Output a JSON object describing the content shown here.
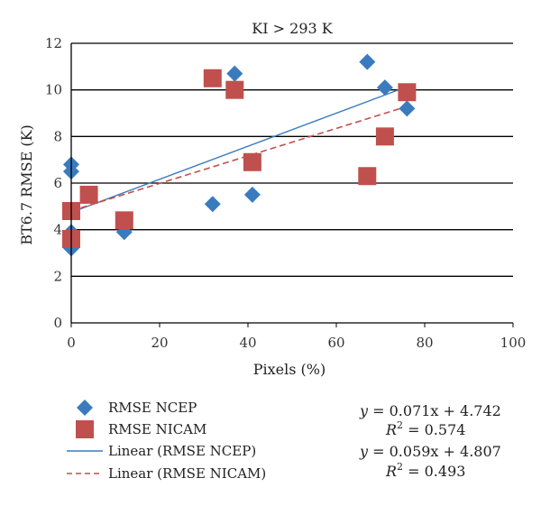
{
  "chart_data": {
    "type": "scatter",
    "title": "KI > 293 K",
    "xlabel": "Pixels (%)",
    "ylabel": "BT6.7  RMSE (K)",
    "xlim": [
      0,
      100
    ],
    "ylim": [
      0,
      12
    ],
    "x_ticks": [
      0,
      20,
      40,
      60,
      80,
      100
    ],
    "y_ticks": [
      0,
      2,
      4,
      6,
      8,
      10,
      12
    ],
    "grid": "horizontal",
    "legend_position": "bottom",
    "series": [
      {
        "name": "RMSE NCEP",
        "marker": "diamond",
        "color": "#3a7bbf",
        "points": [
          {
            "x": 0,
            "y": 6.8
          },
          {
            "x": 0,
            "y": 6.5
          },
          {
            "x": 0,
            "y": 3.9
          },
          {
            "x": 0,
            "y": 3.2
          },
          {
            "x": 12,
            "y": 3.9
          },
          {
            "x": 32,
            "y": 5.1
          },
          {
            "x": 37,
            "y": 10.7
          },
          {
            "x": 41,
            "y": 5.5
          },
          {
            "x": 67,
            "y": 11.2
          },
          {
            "x": 71,
            "y": 10.1
          },
          {
            "x": 76,
            "y": 9.2
          }
        ]
      },
      {
        "name": "RMSE NICAM",
        "marker": "square",
        "color": "#c0504d",
        "points": [
          {
            "x": 0,
            "y": 4.8
          },
          {
            "x": 0,
            "y": 3.6
          },
          {
            "x": 4,
            "y": 5.5
          },
          {
            "x": 12,
            "y": 4.4
          },
          {
            "x": 32,
            "y": 10.5
          },
          {
            "x": 37,
            "y": 10.0
          },
          {
            "x": 41,
            "y": 6.9
          },
          {
            "x": 67,
            "y": 6.3
          },
          {
            "x": 71,
            "y": 8.0
          },
          {
            "x": 76,
            "y": 9.9
          }
        ]
      }
    ],
    "trendlines": [
      {
        "name": "Linear (RMSE NCEP)",
        "slope": 0.071,
        "intercept": 4.742,
        "x_range": [
          0,
          76
        ],
        "color": "#3a7bbf",
        "dash": "solid"
      },
      {
        "name": "Linear (RMSE NICAM)",
        "slope": 0.059,
        "intercept": 4.807,
        "x_range": [
          0,
          76
        ],
        "color": "#c0504d",
        "dash": "dashed"
      }
    ],
    "equations": [
      {
        "eq_y": "y",
        "eq_rest": " = 0.071x + 4.742",
        "r2_value": " = 0.574"
      },
      {
        "eq_y": "y",
        "eq_rest": " = 0.059x + 4.807",
        "r2_value": " = 0.493"
      }
    ],
    "r2_symbol": "R"
  }
}
